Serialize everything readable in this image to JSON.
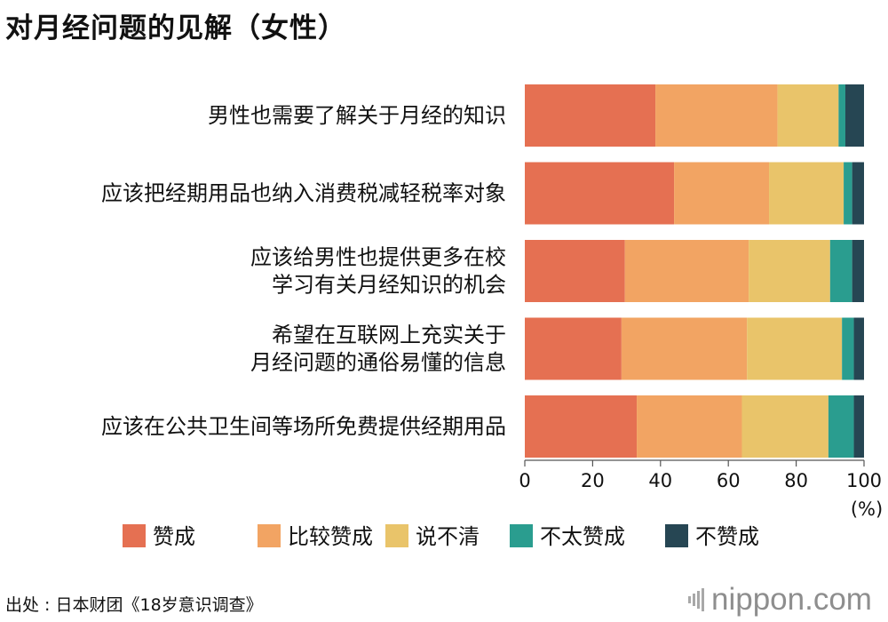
{
  "title": "对月经问题的见解（女性）",
  "source": "出处 : 日本财团《18岁意识调查》",
  "logo": "nippon.com",
  "colors": {
    "赞成": "#E57052",
    "比较赞成": "#F2A463",
    "说不清": "#E9C46A",
    "不太赞成": "#2A9D8F",
    "不赞成": "#264653"
  },
  "chart_data": {
    "type": "bar",
    "orientation": "horizontal",
    "stacked": true,
    "categories": [
      [
        "男性也需要了解关于月经的知识"
      ],
      [
        "应该把经期用品也纳入消费税减轻税率对象"
      ],
      [
        "应该给男性也提供更多在校",
        "学习有关月经知识的机会"
      ],
      [
        "希望在互联网上充实关于",
        "月经问题的通俗易懂的信息"
      ],
      [
        "应该在公共卫生间等场所免费提供经期用品"
      ]
    ],
    "series": [
      {
        "name": "赞成",
        "values": [
          38.5,
          44.0,
          29.5,
          28.5,
          33.0
        ]
      },
      {
        "name": "比较赞成",
        "values": [
          36.0,
          28.0,
          36.5,
          37.0,
          31.0
        ]
      },
      {
        "name": "说不清",
        "values": [
          18.0,
          22.0,
          24.0,
          28.0,
          25.5
        ]
      },
      {
        "name": "不太赞成",
        "values": [
          2.0,
          2.5,
          6.5,
          3.5,
          7.5
        ]
      },
      {
        "name": "不赞成",
        "values": [
          5.5,
          3.5,
          3.5,
          3.0,
          3.0
        ]
      }
    ],
    "xlim": [
      0,
      100
    ],
    "xticks": [
      "0",
      "20",
      "40",
      "60",
      "80",
      "100"
    ],
    "xunit": "(%)",
    "legend_position": "bottom",
    "grid": false
  }
}
